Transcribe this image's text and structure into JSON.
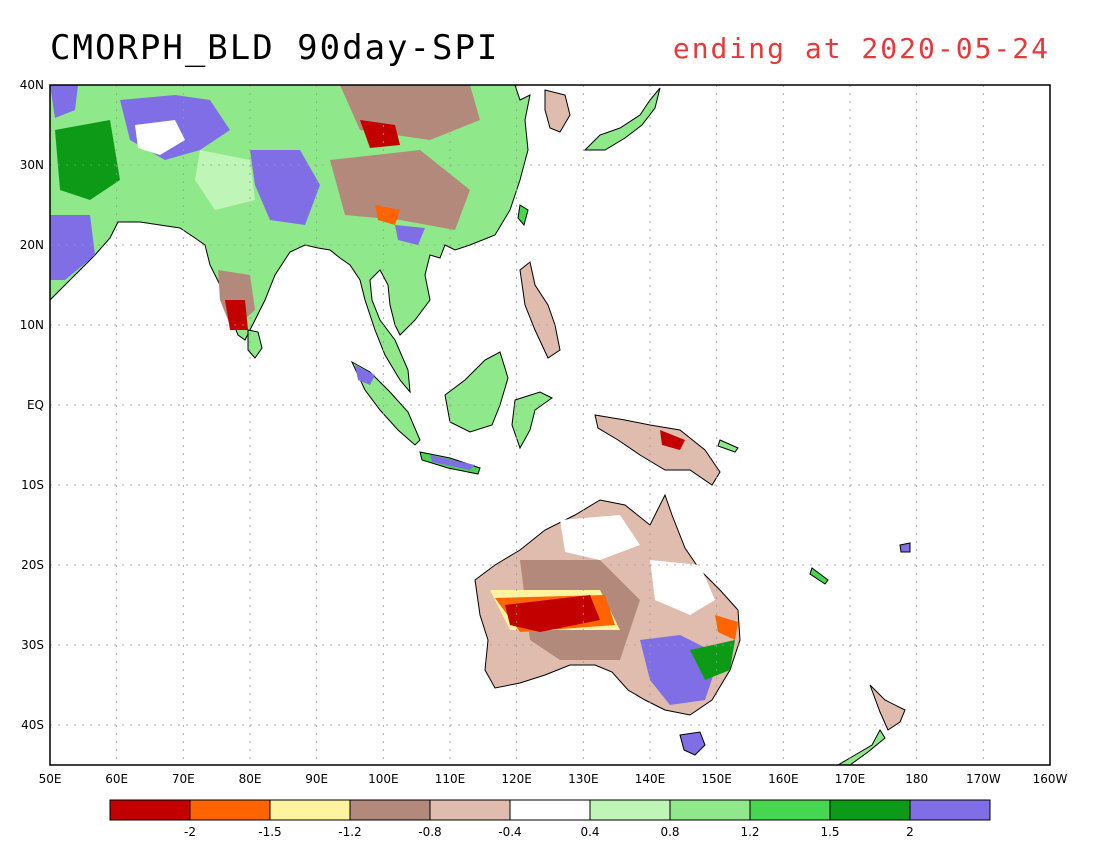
{
  "title": "CMORPH_BLD 90day-SPI",
  "subtitle": "ending at 2020-05-24",
  "colors": {
    "subtitle": "#e53a3a",
    "coast": "#000000",
    "grid": "#999999",
    "frame": "#000000"
  },
  "map": {
    "lat_labels": [
      "40N",
      "30N",
      "20N",
      "10N",
      "EQ",
      "10S",
      "20S",
      "30S",
      "40S"
    ],
    "lon_labels": [
      "50E",
      "60E",
      "70E",
      "80E",
      "90E",
      "100E",
      "110E",
      "120E",
      "130E",
      "140E",
      "150E",
      "160E",
      "170E",
      "180",
      "170W",
      "160W"
    ],
    "lat_range": [
      -45,
      40
    ],
    "lon_range": [
      50,
      200
    ],
    "grid": true
  },
  "legend": {
    "colors": [
      "#c20000",
      "#ff6400",
      "#fff3a0",
      "#b3897b",
      "#dfbcae",
      "#ffffff",
      "#c0f5b8",
      "#8fe88a",
      "#47d650",
      "#0c9a17",
      "#7f6ee6"
    ],
    "labels": [
      "-2",
      "-1.5",
      "-1.2",
      "-0.8",
      "-0.4",
      "0.4",
      "0.8",
      "1.2",
      "1.5",
      "2"
    ]
  }
}
